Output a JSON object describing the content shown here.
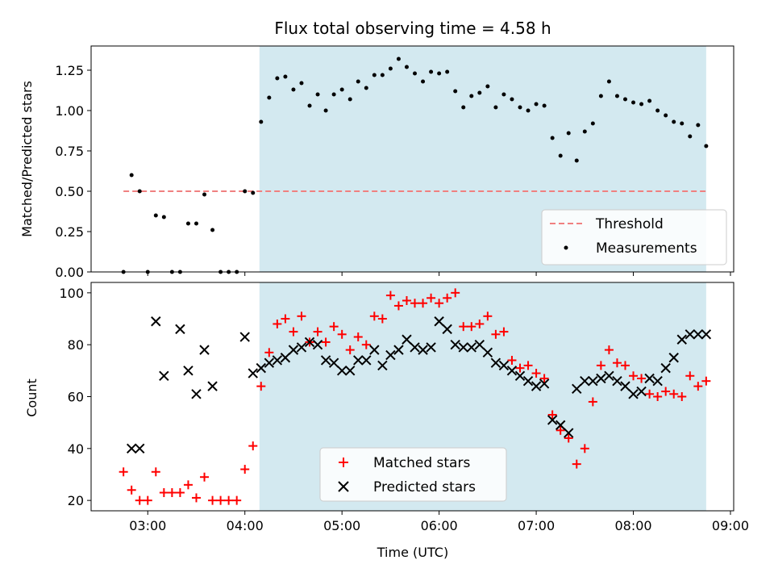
{
  "colors": {
    "observing_band": "#d3e9f0",
    "threshold": "#f08080",
    "measurement": "#000000",
    "matched": "#ff0000",
    "predicted": "#000000"
  },
  "chart_data": [
    {
      "type": "scatter",
      "title": "Flux total observing time = 4.58 h",
      "ylabel": "Matched/Predicted stars",
      "xlim": [
        "02:25",
        "09:02"
      ],
      "ylim": [
        0,
        1.4
      ],
      "yticks": [
        "0.00",
        "0.25",
        "0.50",
        "0.75",
        "1.00",
        "1.25"
      ],
      "xticks": [
        "03:00",
        "04:00",
        "05:00",
        "06:00",
        "07:00",
        "08:00",
        "09:00"
      ],
      "observing_window": [
        "04:09",
        "08:45"
      ],
      "threshold": {
        "name": "Threshold",
        "value": 0.5,
        "x": [
          "02:45",
          "08:45"
        ]
      },
      "legend": {
        "placement": "lower-right",
        "entries": [
          "Threshold",
          "Measurements"
        ]
      },
      "series": [
        {
          "name": "Measurements",
          "x": [
            "02:45",
            "02:50",
            "02:55",
            "03:00",
            "03:05",
            "03:10",
            "03:15",
            "03:20",
            "03:25",
            "03:30",
            "03:35",
            "03:40",
            "03:45",
            "03:50",
            "03:55",
            "04:00",
            "04:05",
            "04:10",
            "04:15",
            "04:20",
            "04:25",
            "04:30",
            "04:35",
            "04:40",
            "04:45",
            "04:50",
            "04:55",
            "05:00",
            "05:05",
            "05:10",
            "05:15",
            "05:20",
            "05:25",
            "05:30",
            "05:35",
            "05:40",
            "05:45",
            "05:50",
            "05:55",
            "06:00",
            "06:05",
            "06:10",
            "06:15",
            "06:20",
            "06:25",
            "06:30",
            "06:35",
            "06:40",
            "06:45",
            "06:50",
            "06:55",
            "07:00",
            "07:05",
            "07:10",
            "07:15",
            "07:20",
            "07:25",
            "07:30",
            "07:35",
            "07:40",
            "07:45",
            "07:50",
            "07:55",
            "08:00",
            "08:05",
            "08:10",
            "08:15",
            "08:20",
            "08:25",
            "08:30",
            "08:35",
            "08:40",
            "08:45"
          ],
          "y": [
            0.0,
            0.6,
            0.5,
            0.0,
            0.35,
            0.34,
            0.0,
            0.0,
            0.3,
            0.3,
            0.48,
            0.26,
            0.0,
            0.0,
            0.0,
            0.5,
            0.49,
            0.93,
            1.08,
            1.2,
            1.21,
            1.13,
            1.17,
            1.03,
            1.1,
            1.0,
            1.1,
            1.13,
            1.07,
            1.18,
            1.14,
            1.22,
            1.22,
            1.26,
            1.32,
            1.27,
            1.23,
            1.18,
            1.24,
            1.23,
            1.24,
            1.12,
            1.02,
            1.09,
            1.11,
            1.15,
            1.02,
            1.1,
            1.07,
            1.02,
            1.0,
            1.04,
            1.03,
            0.83,
            0.72,
            0.86,
            0.69,
            0.87,
            0.92,
            1.09,
            1.18,
            1.09,
            1.07,
            1.05,
            1.04,
            1.06,
            1.0,
            0.97,
            0.93,
            0.92,
            0.84,
            0.91,
            0.78
          ]
        }
      ]
    },
    {
      "type": "scatter",
      "xlabel": "Time (UTC)",
      "ylabel": "Count",
      "xlim": [
        "02:25",
        "09:02"
      ],
      "ylim": [
        16,
        104
      ],
      "yticks": [
        "20",
        "40",
        "60",
        "80",
        "100"
      ],
      "xticks": [
        "03:00",
        "04:00",
        "05:00",
        "06:00",
        "07:00",
        "08:00",
        "09:00"
      ],
      "observing_window": [
        "04:09",
        "08:45"
      ],
      "legend": {
        "placement": "lower-center",
        "entries": [
          "Matched stars",
          "Predicted stars"
        ]
      },
      "series": [
        {
          "name": "Matched stars",
          "x": [
            "02:45",
            "02:50",
            "02:55",
            "03:00",
            "03:05",
            "03:10",
            "03:15",
            "03:20",
            "03:25",
            "03:30",
            "03:35",
            "03:40",
            "03:45",
            "03:50",
            "03:55",
            "04:00",
            "04:05",
            "04:10",
            "04:15",
            "04:20",
            "04:25",
            "04:30",
            "04:35",
            "04:40",
            "04:45",
            "04:50",
            "04:55",
            "05:00",
            "05:05",
            "05:10",
            "05:15",
            "05:20",
            "05:25",
            "05:30",
            "05:35",
            "05:40",
            "05:45",
            "05:50",
            "05:55",
            "06:00",
            "06:05",
            "06:10",
            "06:15",
            "06:20",
            "06:25",
            "06:30",
            "06:35",
            "06:40",
            "06:45",
            "06:50",
            "06:55",
            "07:00",
            "07:05",
            "07:10",
            "07:15",
            "07:20",
            "07:25",
            "07:30",
            "07:35",
            "07:40",
            "07:45",
            "07:50",
            "07:55",
            "08:00",
            "08:05",
            "08:10",
            "08:15",
            "08:20",
            "08:25",
            "08:30",
            "08:35",
            "08:40",
            "08:45"
          ],
          "y": [
            31,
            24,
            20,
            20,
            31,
            23,
            23,
            23,
            26,
            21,
            29,
            20,
            20,
            20,
            20,
            32,
            41,
            64,
            77,
            88,
            90,
            85,
            91,
            81,
            85,
            81,
            87,
            84,
            78,
            83,
            80,
            91,
            90,
            99,
            95,
            97,
            96,
            96,
            98,
            96,
            98,
            100,
            87,
            87,
            88,
            91,
            84,
            85,
            74,
            71,
            72,
            69,
            67,
            53,
            47,
            44,
            34,
            40,
            58,
            72,
            78,
            73,
            72,
            68,
            67,
            61,
            60,
            62,
            61,
            60,
            68,
            64,
            66
          ]
        },
        {
          "name": "Predicted stars",
          "x": [
            "02:50",
            "02:55",
            "03:05",
            "03:10",
            "03:20",
            "03:25",
            "03:30",
            "03:35",
            "03:40",
            "04:00",
            "04:05",
            "04:10",
            "04:15",
            "04:20",
            "04:25",
            "04:30",
            "04:35",
            "04:40",
            "04:45",
            "04:50",
            "04:55",
            "05:00",
            "05:05",
            "05:10",
            "05:15",
            "05:20",
            "05:25",
            "05:30",
            "05:35",
            "05:40",
            "05:45",
            "05:50",
            "05:55",
            "06:00",
            "06:05",
            "06:10",
            "06:15",
            "06:20",
            "06:25",
            "06:30",
            "06:35",
            "06:40",
            "06:45",
            "06:50",
            "06:55",
            "07:00",
            "07:05",
            "07:10",
            "07:15",
            "07:20",
            "07:25",
            "07:30",
            "07:35",
            "07:40",
            "07:45",
            "07:50",
            "07:55",
            "08:00",
            "08:05",
            "08:10",
            "08:15",
            "08:20",
            "08:25",
            "08:30",
            "08:35",
            "08:40",
            "08:45"
          ],
          "y": [
            40,
            40,
            89,
            68,
            86,
            70,
            61,
            78,
            64,
            83,
            69,
            71,
            73,
            74,
            75,
            78,
            79,
            81,
            80,
            74,
            73,
            70,
            70,
            74,
            74,
            78,
            72,
            76,
            78,
            82,
            79,
            78,
            79,
            89,
            86,
            80,
            79,
            79,
            80,
            77,
            73,
            72,
            70,
            68,
            66,
            64,
            65,
            51,
            49,
            46,
            63,
            66,
            66,
            67,
            68,
            66,
            64,
            61,
            62,
            67,
            66,
            71,
            75,
            82,
            84,
            84,
            84
          ]
        }
      ]
    }
  ]
}
